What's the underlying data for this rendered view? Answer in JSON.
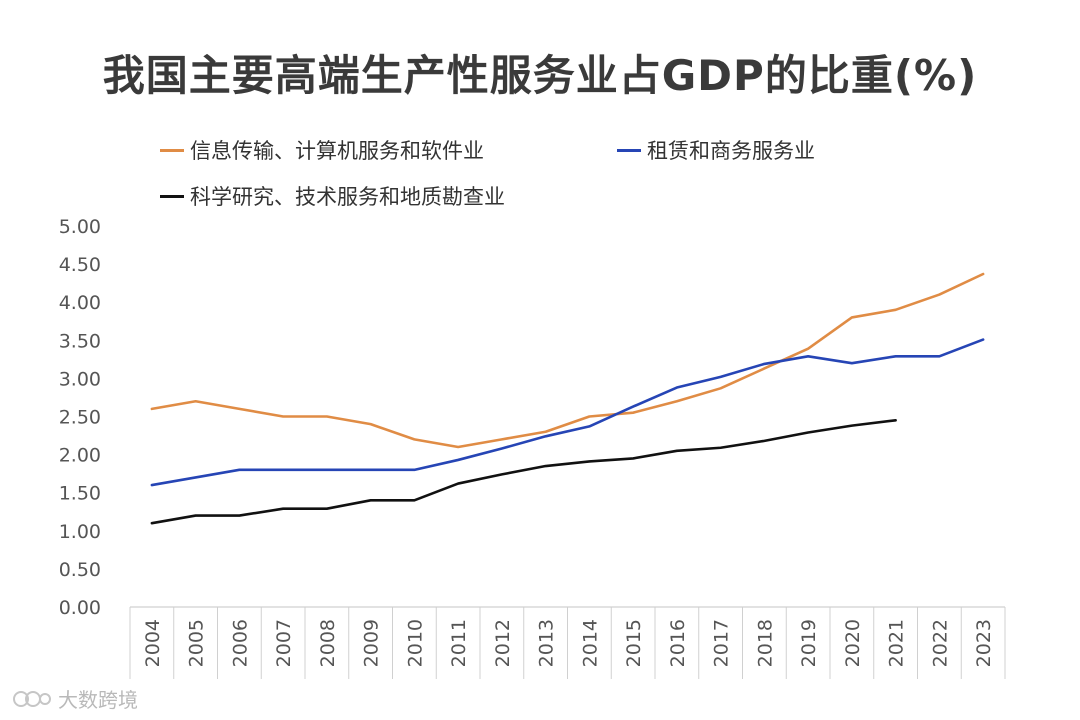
{
  "chart_data": {
    "type": "line",
    "title": "我国主要高端生产性服务业占GDP的比重(%)",
    "xlabel": "",
    "ylabel": "",
    "ylim": [
      0,
      5
    ],
    "ytick_step": 0.5,
    "grid": false,
    "legend_position": "top",
    "categories": [
      "2004",
      "2005",
      "2006",
      "2007",
      "2008",
      "2009",
      "2010",
      "2011",
      "2012",
      "2013",
      "2014",
      "2015",
      "2016",
      "2017",
      "2018",
      "2019",
      "2020",
      "2021",
      "2022",
      "2023"
    ],
    "series": [
      {
        "name": "信息传输、计算机服务和软件业",
        "color": "#e08c45",
        "values": [
          2.6,
          2.7,
          2.6,
          2.5,
          2.5,
          2.4,
          2.2,
          2.1,
          2.2,
          2.3,
          2.5,
          2.55,
          2.7,
          2.87,
          3.13,
          3.39,
          3.8,
          3.9,
          4.1,
          4.37
        ]
      },
      {
        "name": "租赁和商务服务业",
        "color": "#2645b5",
        "values": [
          1.6,
          1.7,
          1.8,
          1.8,
          1.8,
          1.8,
          1.8,
          1.93,
          2.08,
          2.24,
          2.37,
          2.63,
          2.88,
          3.02,
          3.19,
          3.29,
          3.2,
          3.29,
          3.29,
          3.51
        ]
      },
      {
        "name": "科学研究、技术服务和地质勘查业",
        "color": "#111111",
        "values": [
          1.1,
          1.2,
          1.2,
          1.29,
          1.29,
          1.4,
          1.4,
          1.62,
          1.74,
          1.85,
          1.91,
          1.95,
          2.05,
          2.09,
          2.18,
          2.29,
          2.38,
          2.45,
          null,
          null
        ]
      }
    ]
  },
  "watermark": {
    "text": "大数跨境"
  }
}
